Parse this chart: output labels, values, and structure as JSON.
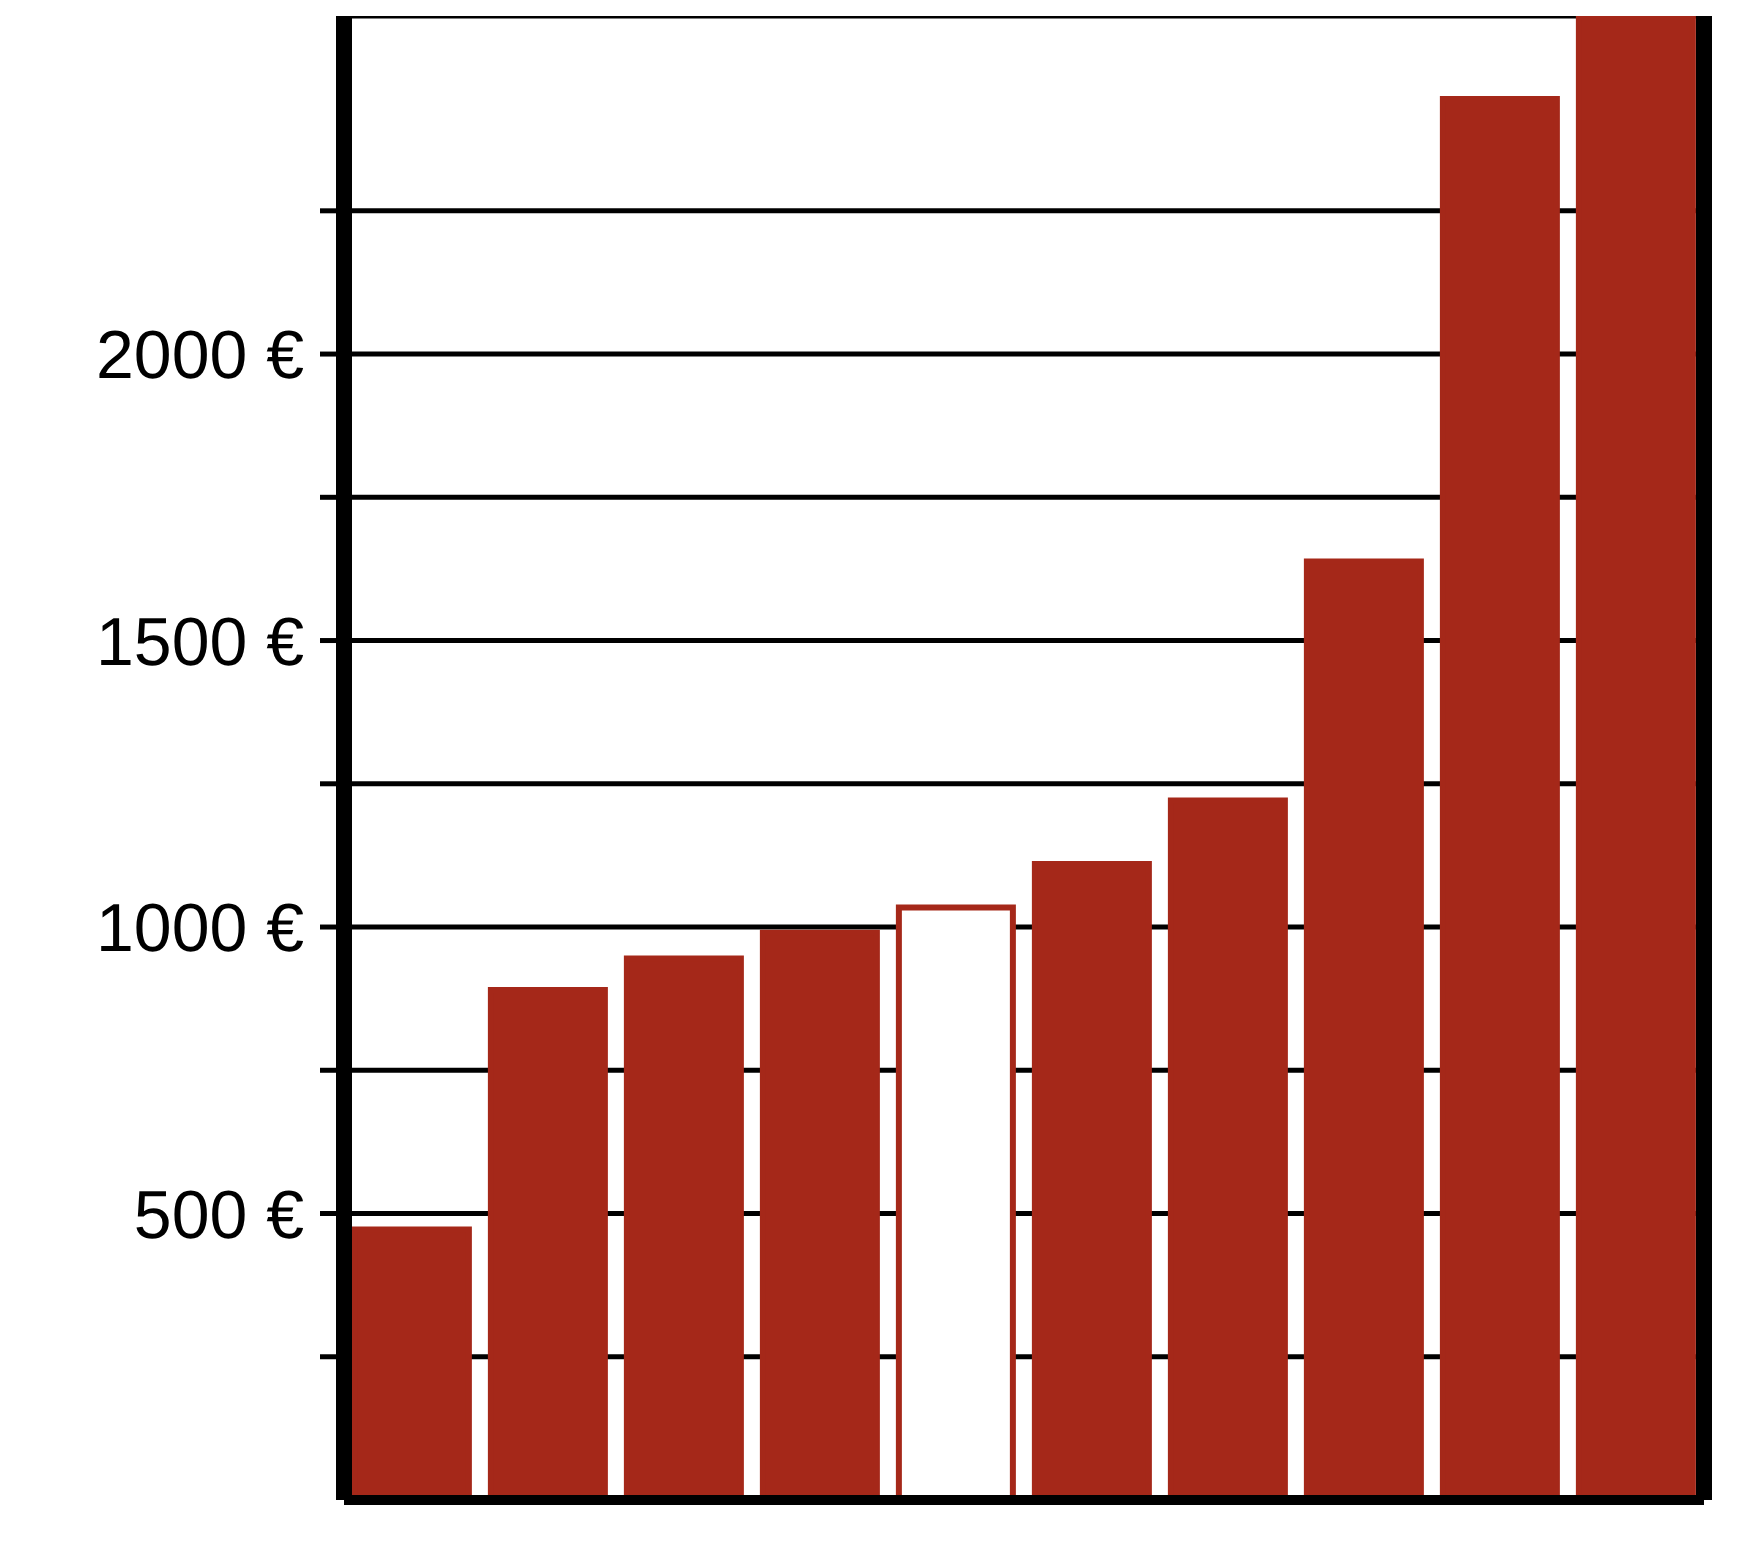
{
  "chart_data": {
    "type": "bar",
    "categories": [
      null,
      null,
      null,
      null,
      null,
      null,
      null,
      null,
      null,
      null
    ],
    "values": [
      472,
      890,
      945,
      990,
      1034,
      1110,
      1221,
      1638,
      2445,
      2590
    ],
    "color": "#a52819",
    "colors": [
      "#a52819",
      "#a52819",
      "#a52819",
      "#a52819",
      "#ffffff",
      "#a52819",
      "#a52819",
      "#a52819",
      "#a52819",
      "#a52819"
    ],
    "ylim": [
      0,
      2590
    ],
    "yticks": [
      {
        "value": 250,
        "label": null
      },
      {
        "value": 500,
        "label": "500 €"
      },
      {
        "value": 750,
        "label": null
      },
      {
        "value": 1000,
        "label": "1000 €"
      },
      {
        "value": 1250,
        "label": null
      },
      {
        "value": 1500,
        "label": "1500 €"
      },
      {
        "value": 1750,
        "label": null
      },
      {
        "value": 2000,
        "label": "2000 €"
      },
      {
        "value": 2250,
        "label": null
      }
    ],
    "grid": "y",
    "legend": false
  }
}
